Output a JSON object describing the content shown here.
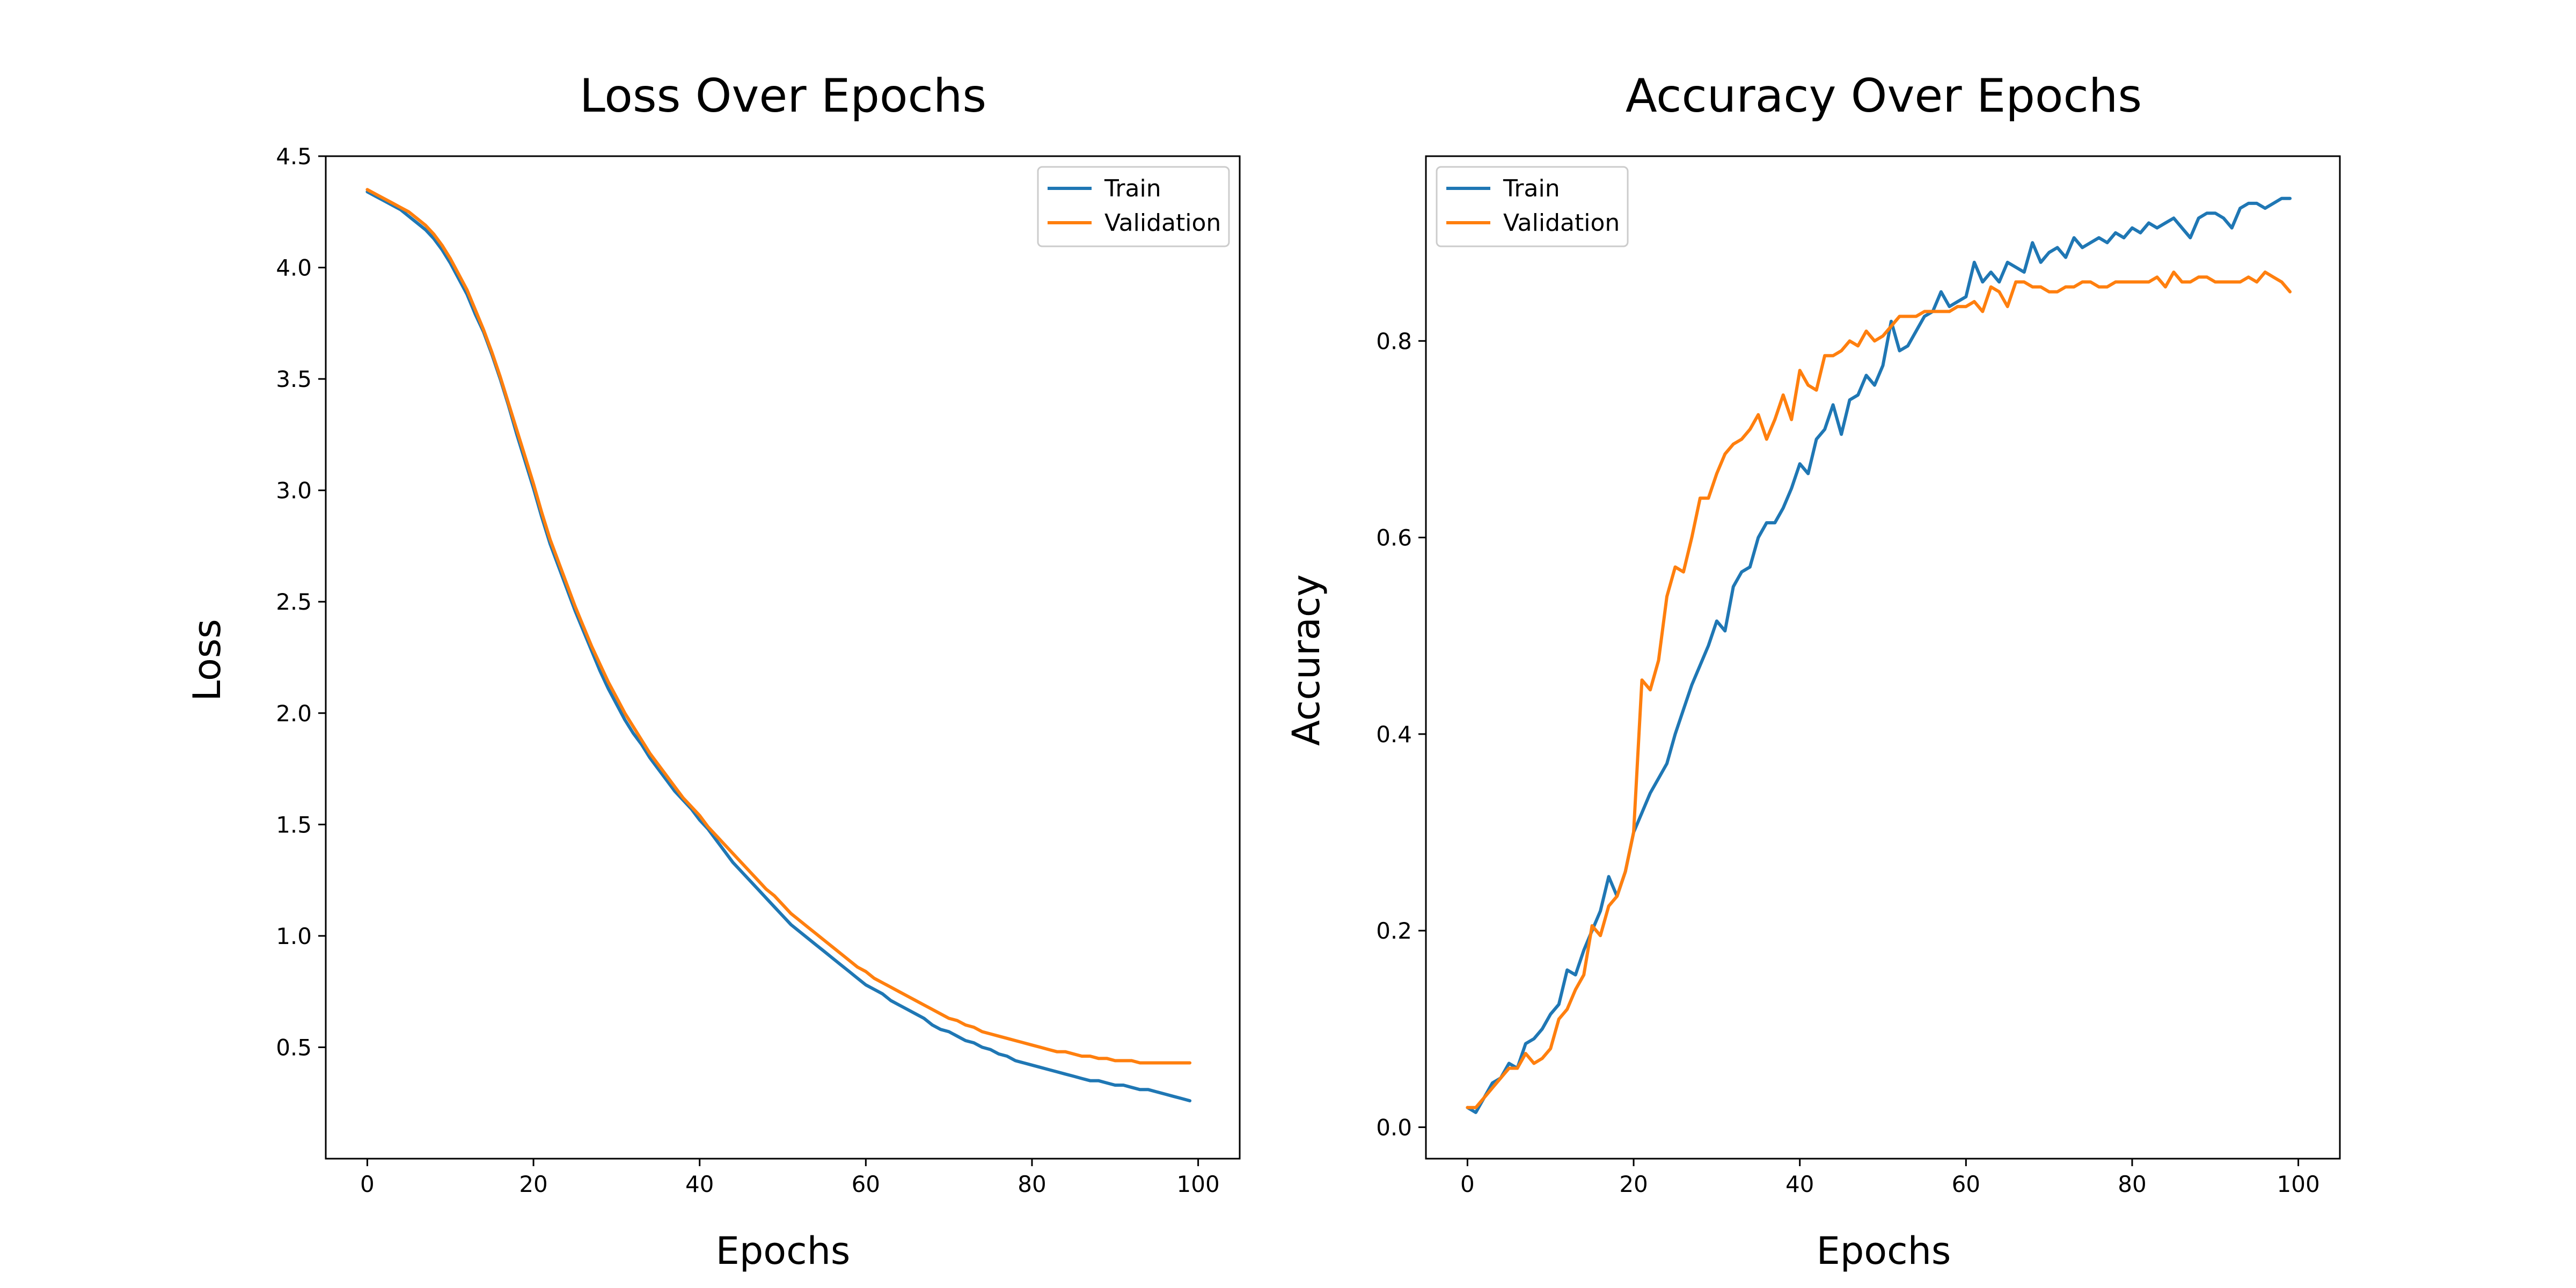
{
  "colors": {
    "train": "#1f77b4",
    "validation": "#ff7f0e"
  },
  "chart_data": [
    {
      "type": "line",
      "title": "Loss Over Epochs",
      "xlabel": "Epochs",
      "ylabel": "Loss",
      "xlim": [
        -5,
        105
      ],
      "ylim": [
        0.0,
        4.5
      ],
      "xticks": [
        0,
        20,
        40,
        60,
        80,
        100
      ],
      "yticks": [
        0.5,
        1.0,
        1.5,
        2.0,
        2.5,
        3.0,
        3.5,
        4.0,
        4.5
      ],
      "ytick_labels": [
        "0.5",
        "1.0",
        "1.5",
        "2.0",
        "2.5",
        "3.0",
        "3.5",
        "4.0",
        "4.5"
      ],
      "grid": false,
      "legend_position": "top-right",
      "x": {
        "start": 0,
        "end": 99
      },
      "series": [
        {
          "name": "Train",
          "color_key": "train",
          "values": [
            4.34,
            4.32,
            4.3,
            4.28,
            4.26,
            4.23,
            4.2,
            4.17,
            4.13,
            4.08,
            4.02,
            3.95,
            3.88,
            3.79,
            3.71,
            3.61,
            3.5,
            3.38,
            3.25,
            3.13,
            3.01,
            2.88,
            2.76,
            2.66,
            2.56,
            2.46,
            2.37,
            2.28,
            2.19,
            2.11,
            2.04,
            1.97,
            1.91,
            1.86,
            1.8,
            1.75,
            1.7,
            1.65,
            1.61,
            1.57,
            1.52,
            1.48,
            1.43,
            1.38,
            1.33,
            1.29,
            1.25,
            1.21,
            1.17,
            1.13,
            1.09,
            1.05,
            1.02,
            0.99,
            0.96,
            0.93,
            0.9,
            0.87,
            0.84,
            0.81,
            0.78,
            0.76,
            0.74,
            0.71,
            0.69,
            0.67,
            0.65,
            0.63,
            0.6,
            0.58,
            0.57,
            0.55,
            0.53,
            0.52,
            0.5,
            0.49,
            0.47,
            0.46,
            0.44,
            0.43,
            0.42,
            0.41,
            0.4,
            0.39,
            0.38,
            0.37,
            0.36,
            0.35,
            0.35,
            0.34,
            0.33,
            0.33,
            0.32,
            0.31,
            0.31,
            0.3,
            0.29,
            0.28,
            0.27,
            0.26
          ]
        },
        {
          "name": "Validation",
          "color_key": "validation",
          "values": [
            4.35,
            4.33,
            4.31,
            4.29,
            4.27,
            4.25,
            4.22,
            4.19,
            4.15,
            4.1,
            4.04,
            3.97,
            3.9,
            3.81,
            3.72,
            3.62,
            3.51,
            3.39,
            3.27,
            3.15,
            3.03,
            2.9,
            2.78,
            2.68,
            2.58,
            2.48,
            2.39,
            2.3,
            2.22,
            2.14,
            2.07,
            2.0,
            1.94,
            1.88,
            1.82,
            1.77,
            1.72,
            1.67,
            1.62,
            1.58,
            1.54,
            1.49,
            1.45,
            1.41,
            1.37,
            1.33,
            1.29,
            1.25,
            1.21,
            1.18,
            1.14,
            1.1,
            1.07,
            1.04,
            1.01,
            0.98,
            0.95,
            0.92,
            0.89,
            0.86,
            0.84,
            0.81,
            0.79,
            0.77,
            0.75,
            0.73,
            0.71,
            0.69,
            0.67,
            0.65,
            0.63,
            0.62,
            0.6,
            0.59,
            0.57,
            0.56,
            0.55,
            0.54,
            0.53,
            0.52,
            0.51,
            0.5,
            0.49,
            0.48,
            0.48,
            0.47,
            0.46,
            0.46,
            0.45,
            0.45,
            0.44,
            0.44,
            0.44,
            0.43,
            0.43,
            0.43,
            0.43,
            0.43,
            0.43,
            0.43
          ]
        }
      ]
    },
    {
      "type": "line",
      "title": "Accuracy Over Epochs",
      "xlabel": "Epochs",
      "ylabel": "Accuracy",
      "xlim": [
        -5,
        105
      ],
      "ylim": [
        -0.032,
        0.988
      ],
      "xticks": [
        0,
        20,
        40,
        60,
        80,
        100
      ],
      "yticks": [
        0.0,
        0.2,
        0.4,
        0.6,
        0.8
      ],
      "ytick_labels": [
        "0.0",
        "0.2",
        "0.4",
        "0.6",
        "0.8"
      ],
      "grid": false,
      "legend_position": "top-left",
      "x": {
        "start": 0,
        "end": 99
      },
      "series": [
        {
          "name": "Train",
          "color_key": "train",
          "values": [
            0.02,
            0.015,
            0.03,
            0.045,
            0.05,
            0.065,
            0.06,
            0.085,
            0.09,
            0.1,
            0.115,
            0.125,
            0.16,
            0.155,
            0.18,
            0.2,
            0.22,
            0.255,
            0.235,
            0.26,
            0.3,
            0.32,
            0.34,
            0.355,
            0.37,
            0.4,
            0.425,
            0.45,
            0.47,
            0.49,
            0.515,
            0.505,
            0.55,
            0.565,
            0.57,
            0.6,
            0.615,
            0.615,
            0.63,
            0.65,
            0.675,
            0.665,
            0.7,
            0.71,
            0.735,
            0.705,
            0.74,
            0.745,
            0.765,
            0.755,
            0.775,
            0.82,
            0.79,
            0.795,
            0.81,
            0.825,
            0.83,
            0.85,
            0.835,
            0.84,
            0.845,
            0.88,
            0.86,
            0.87,
            0.86,
            0.88,
            0.875,
            0.87,
            0.9,
            0.88,
            0.89,
            0.895,
            0.885,
            0.905,
            0.895,
            0.9,
            0.905,
            0.9,
            0.91,
            0.905,
            0.915,
            0.91,
            0.92,
            0.915,
            0.92,
            0.925,
            0.915,
            0.905,
            0.925,
            0.93,
            0.93,
            0.925,
            0.915,
            0.935,
            0.94,
            0.94,
            0.935,
            0.94,
            0.945,
            0.945
          ]
        },
        {
          "name": "Validation",
          "color_key": "validation",
          "values": [
            0.02,
            0.02,
            0.03,
            0.04,
            0.05,
            0.06,
            0.06,
            0.075,
            0.065,
            0.07,
            0.08,
            0.11,
            0.12,
            0.14,
            0.155,
            0.205,
            0.195,
            0.225,
            0.235,
            0.26,
            0.3,
            0.455,
            0.445,
            0.475,
            0.54,
            0.57,
            0.565,
            0.6,
            0.64,
            0.64,
            0.665,
            0.685,
            0.695,
            0.7,
            0.71,
            0.725,
            0.7,
            0.72,
            0.745,
            0.72,
            0.77,
            0.755,
            0.75,
            0.785,
            0.785,
            0.79,
            0.8,
            0.795,
            0.81,
            0.8,
            0.805,
            0.815,
            0.825,
            0.825,
            0.825,
            0.83,
            0.83,
            0.83,
            0.83,
            0.835,
            0.835,
            0.84,
            0.83,
            0.855,
            0.85,
            0.835,
            0.86,
            0.86,
            0.855,
            0.855,
            0.85,
            0.85,
            0.855,
            0.855,
            0.86,
            0.86,
            0.855,
            0.855,
            0.86,
            0.86,
            0.86,
            0.86,
            0.86,
            0.865,
            0.855,
            0.87,
            0.86,
            0.86,
            0.865,
            0.865,
            0.86,
            0.86,
            0.86,
            0.86,
            0.865,
            0.86,
            0.87,
            0.865,
            0.86,
            0.85
          ]
        }
      ]
    }
  ]
}
